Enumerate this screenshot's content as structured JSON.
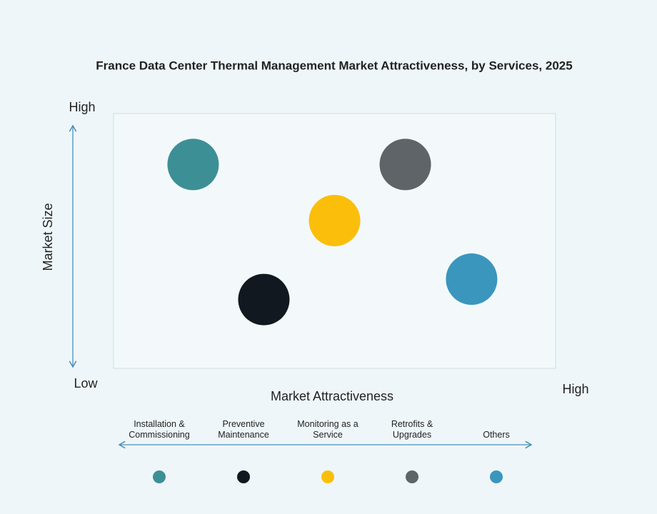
{
  "chart_data": {
    "type": "bubble",
    "title": "France Data Center Thermal Management Market Attractiveness,  by Services, 2025",
    "xlabel": "Market Attractiveness",
    "ylabel": "Market Size",
    "x_high_label": "High",
    "y_high_label": "High",
    "y_low_label": "Low",
    "xlim": [
      0,
      100
    ],
    "ylim": [
      0,
      100
    ],
    "series": [
      {
        "name": "Installation & Commissioning",
        "color": "#3d8f96",
        "x": [
          18
        ],
        "y": [
          80
        ]
      },
      {
        "name": "Preventive Maintenance",
        "color": "#111820",
        "x": [
          34
        ],
        "y": [
          27
        ]
      },
      {
        "name": "Monitoring as a Service",
        "color": "#fbbf0b",
        "x": [
          50
        ],
        "y": [
          58
        ]
      },
      {
        "name": "Retrofits & Upgrades",
        "color": "#5e6467",
        "x": [
          66
        ],
        "y": [
          80
        ]
      },
      {
        "name": "Others",
        "color": "#3a96bd",
        "x": [
          81
        ],
        "y": [
          35
        ]
      }
    ]
  }
}
